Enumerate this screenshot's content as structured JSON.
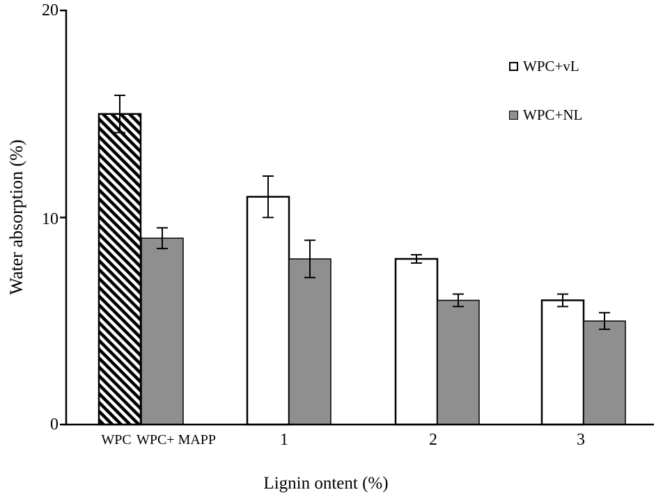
{
  "figure": {
    "background": "#ffffff"
  },
  "chart_data": {
    "type": "bar",
    "title": "",
    "xlabel": "Lignin ontent (%)",
    "ylabel": "Water absorption (%)",
    "ylim": [
      0,
      20
    ],
    "yticks": [
      "0",
      "10",
      "20"
    ],
    "grid": false,
    "legend_position": "top-right",
    "legend": [
      {
        "label": "WPC+vL",
        "style": "open"
      },
      {
        "label": "WPC+NL",
        "style": "gray"
      }
    ],
    "groups": [
      {
        "label": "WPC",
        "bars": [
          {
            "series": "WPC",
            "style": "hatched",
            "value": 15,
            "error": 0.9
          }
        ]
      },
      {
        "label": "WPC+ MAPP",
        "bars": [
          {
            "series": "WPC+ MAPP",
            "style": "gray",
            "value": 9,
            "error": 0.5
          }
        ]
      },
      {
        "label": "1",
        "bars": [
          {
            "series": "WPC+vL",
            "style": "open",
            "value": 11,
            "error": 1.0
          },
          {
            "series": "WPC+NL",
            "style": "gray",
            "value": 8,
            "error": 0.9
          }
        ]
      },
      {
        "label": "2",
        "bars": [
          {
            "series": "WPC+vL",
            "style": "open",
            "value": 8,
            "error": 0.2
          },
          {
            "series": "WPC+NL",
            "style": "gray",
            "value": 6,
            "error": 0.3
          }
        ]
      },
      {
        "label": "3",
        "bars": [
          {
            "series": "WPC+vL",
            "style": "open",
            "value": 6,
            "error": 0.3
          },
          {
            "series": "WPC+NL",
            "style": "gray",
            "value": 5,
            "error": 0.4
          }
        ]
      }
    ],
    "colors": {
      "bar_gray": "#8f8f8f",
      "bar_open": "#ffffff",
      "axis": "#000000"
    }
  }
}
